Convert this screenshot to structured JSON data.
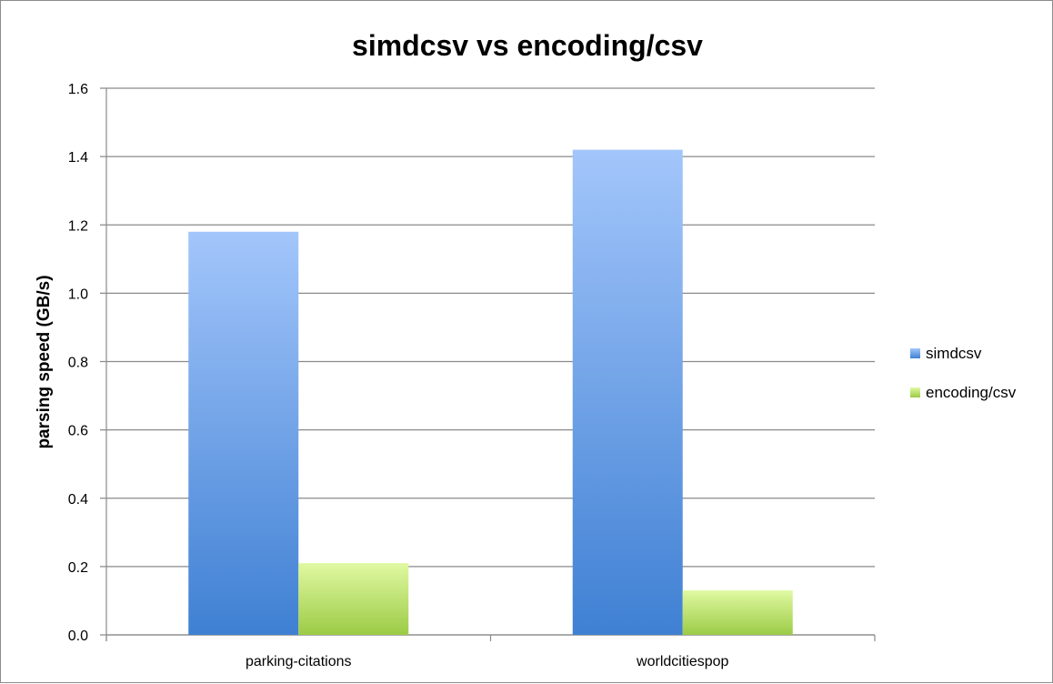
{
  "chart_data": {
    "type": "bar",
    "title": "simdcsv vs encoding/csv",
    "xlabel": "",
    "ylabel": "parsing speed (GB/s)",
    "categories": [
      "parking-citations",
      "worldcitiespop"
    ],
    "series": [
      {
        "name": "simdcsv",
        "values": [
          1.18,
          1.42
        ],
        "color_top": "#a3c6fb",
        "color_bottom": "#3f80d3"
      },
      {
        "name": "encoding/csv",
        "values": [
          0.21,
          0.13
        ],
        "color_top": "#e0f9a2",
        "color_bottom": "#9ccb46"
      }
    ],
    "ylim": [
      0,
      1.6
    ],
    "yticks": [
      "0.0",
      "0.2",
      "0.4",
      "0.6",
      "0.8",
      "1.0",
      "1.2",
      "1.4",
      "1.6"
    ],
    "grid": true,
    "legend_position": "right"
  }
}
